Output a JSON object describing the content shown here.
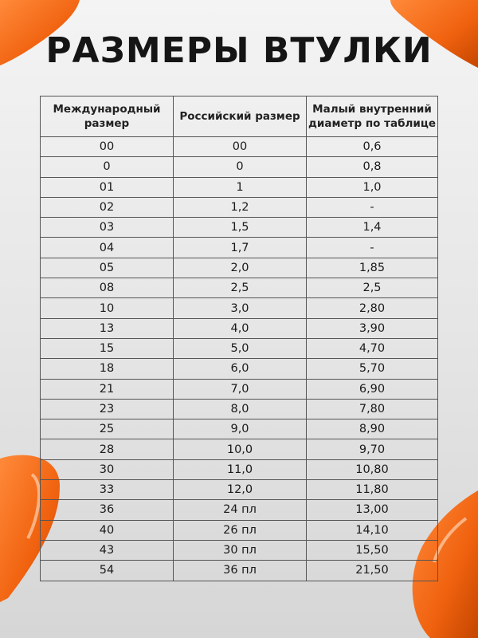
{
  "title": "РАЗМЕРЫ ВТУЛКИ",
  "accent_color": "#f0620f",
  "table": {
    "headers": [
      "Международный размер",
      "Российский размер",
      "Малый внутренний диаметр по таблице"
    ],
    "rows": [
      [
        "00",
        "00",
        "0,6"
      ],
      [
        "0",
        "0",
        "0,8"
      ],
      [
        "01",
        "1",
        "1,0"
      ],
      [
        "02",
        "1,2",
        "-"
      ],
      [
        "03",
        "1,5",
        "1,4"
      ],
      [
        "04",
        "1,7",
        "-"
      ],
      [
        "05",
        "2,0",
        "1,85"
      ],
      [
        "08",
        "2,5",
        "2,5"
      ],
      [
        "10",
        "3,0",
        "2,80"
      ],
      [
        "13",
        "4,0",
        "3,90"
      ],
      [
        "15",
        "5,0",
        "4,70"
      ],
      [
        "18",
        "6,0",
        "5,70"
      ],
      [
        "21",
        "7,0",
        "6,90"
      ],
      [
        "23",
        "8,0",
        "7,80"
      ],
      [
        "25",
        "9,0",
        "8,90"
      ],
      [
        "28",
        "10,0",
        "9,70"
      ],
      [
        "30",
        "11,0",
        "10,80"
      ],
      [
        "33",
        "12,0",
        "11,80"
      ],
      [
        "36",
        "24 пл",
        "13,00"
      ],
      [
        "40",
        "26 пл",
        "14,10"
      ],
      [
        "43",
        "30 пл",
        "15,50"
      ],
      [
        "54",
        "36 пл",
        "21,50"
      ]
    ]
  }
}
